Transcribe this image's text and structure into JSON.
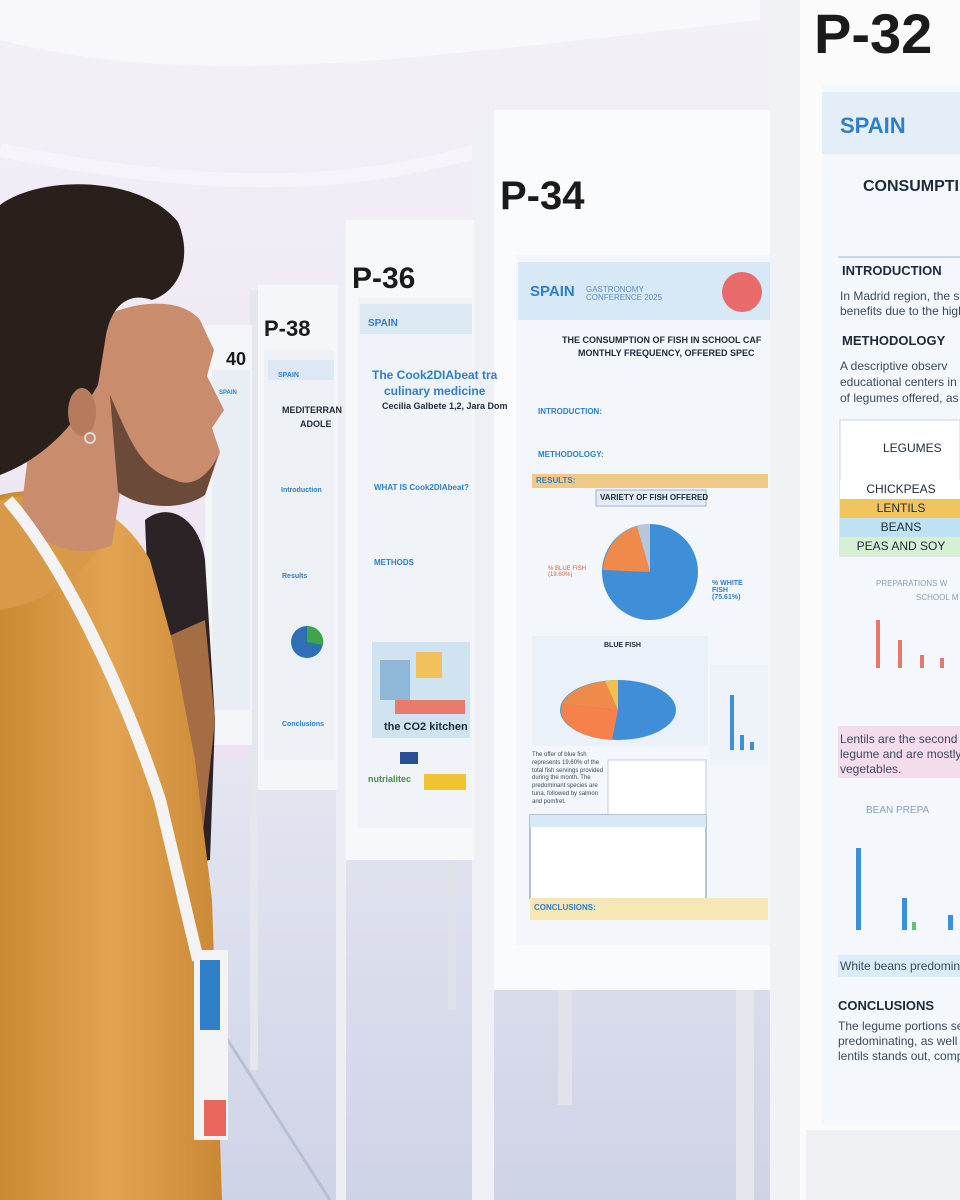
{
  "poster_32": {
    "number": "P-32",
    "brand": "SPAIN",
    "title": "CONSUMPTI",
    "introduction_heading": "INTRODUCTION",
    "introduction_lines": [
      "In Madrid region, the s",
      "benefits due to the high"
    ],
    "methodology_heading": "METHODOLOGY",
    "methodology_lines": [
      "A descriptive observ",
      "educational centers in",
      "of legumes offered, as"
    ],
    "table_header": "LEGUMES",
    "table_rows": [
      "CHICKPEAS",
      "LENTILS",
      "BEANS",
      "PEAS AND SOY"
    ],
    "chart_title_lines": [
      "PREPARATIONS W",
      "SCHOOL M"
    ],
    "lentils_note_lines": [
      "Lentils are the second",
      "legume and are mostly",
      "vegetables."
    ],
    "bean_chart_title": "BEAN PREPA",
    "beans_note": "White beans predomina",
    "conclusions_heading": "CONCLUSIONS",
    "conclusions_lines": [
      "The legume portions se",
      "predominating, as well",
      "lentils stands out, comp"
    ]
  },
  "poster_34": {
    "number": "P-34",
    "brand": "SPAIN",
    "conference": "GASTRONOMY CONFERENCE 2025",
    "title_lines": [
      "THE CONSUMPTION OF FISH IN SCHOOL CAF",
      "MONTHLY FREQUENCY, OFFERED SPEC"
    ],
    "introduction_heading": "INTRODUCTION:",
    "methodology_heading": "METHODOLOGY:",
    "results_heading": "RESULTS:",
    "variety_heading": "VARIETY OF FISH OFFERED",
    "white_fish_label": "% WHITE FISH (75.61%)",
    "blue_fish_label": "% BLUE FISH (19.60%)",
    "blue_fish_heading": "BLUE FISH",
    "blue_fish_text": "The offer of blue fish represents 19.60% of the total fish servings provided during the month. The predominant species are tuna, followed by salmon and pomfret.",
    "conclusions_heading": "CONCLUSIONS:"
  },
  "poster_36": {
    "number": "P-36",
    "brand": "SPAIN",
    "title_lines": [
      "The Cook2DIAbeat tra",
      "culinary medicine"
    ],
    "authors": "Cecilia Galbete 1,2, Jara Dom",
    "what_heading": "WHAT IS Cook2DIAbeat?",
    "methods_heading": "METHODS",
    "kitchen_caption": "the CO2 kitchen",
    "partner": "nutrialitec"
  },
  "poster_38": {
    "number": "P-38",
    "brand": "SPAIN",
    "title_lines": [
      "MEDITERRAN",
      "ADOLE"
    ],
    "introduction_heading": "Introduction",
    "results_heading": "Results",
    "conclusions_heading": "Conclusions"
  },
  "poster_40": {
    "number": "40",
    "brand": "SPAIN"
  }
}
